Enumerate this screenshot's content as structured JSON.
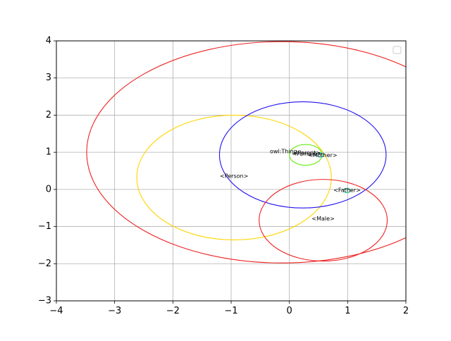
{
  "chart_data": {
    "type": "scatter",
    "title": "",
    "xlabel": "",
    "ylabel": "",
    "xlim": [
      -4,
      2
    ],
    "ylim": [
      -3,
      4
    ],
    "xticks": [
      -4,
      -3,
      -2,
      -1,
      0,
      1,
      2
    ],
    "yticks": [
      -3,
      -2,
      -1,
      0,
      1,
      2,
      3,
      4
    ],
    "xtick_labels": [
      "−4",
      "−3",
      "−2",
      "−1",
      "0",
      "1",
      "2"
    ],
    "ytick_labels": [
      "−3",
      "−2",
      "−1",
      "0",
      "1",
      "2",
      "3",
      "4"
    ],
    "grid": true,
    "legend": {
      "placement": "top-right",
      "entries": []
    },
    "ellipses": [
      {
        "cx": -0.13,
        "cy": 1.0,
        "rx": 3.35,
        "ry": 2.98,
        "color": "#ee2222"
      },
      {
        "cx": -0.95,
        "cy": 0.32,
        "rx": 1.67,
        "ry": 1.68,
        "color": "#ffd400"
      },
      {
        "cx": 0.23,
        "cy": 0.93,
        "rx": 1.43,
        "ry": 1.43,
        "color": "#2211ee"
      },
      {
        "cx": 0.58,
        "cy": -0.83,
        "rx": 1.1,
        "ry": 1.1,
        "color": "#ee2222"
      },
      {
        "cx": 0.28,
        "cy": 0.93,
        "rx": 0.28,
        "ry": 0.28,
        "color": "#66ee11"
      },
      {
        "cx": 0.53,
        "cy": 0.93,
        "rx": 0.06,
        "ry": 0.06,
        "color": "#22cccc"
      },
      {
        "cx": 0.99,
        "cy": -0.03,
        "rx": 0.06,
        "ry": 0.06,
        "color": "#22cc88"
      }
    ],
    "labels": [
      {
        "text": "owl:Thing",
        "x": -0.1,
        "y": 1.02
      },
      {
        "text": "<Parent>",
        "x": 0.3,
        "y": 0.98
      },
      {
        "text": "<Female>",
        "x": 0.3,
        "y": 0.96
      },
      {
        "text": "<Mother>",
        "x": 0.57,
        "y": 0.92
      },
      {
        "text": "<Person>",
        "x": -0.95,
        "y": 0.36
      },
      {
        "text": "<Father>",
        "x": 0.99,
        "y": -0.02
      },
      {
        "text": "<Male>",
        "x": 0.58,
        "y": -0.79
      }
    ]
  }
}
